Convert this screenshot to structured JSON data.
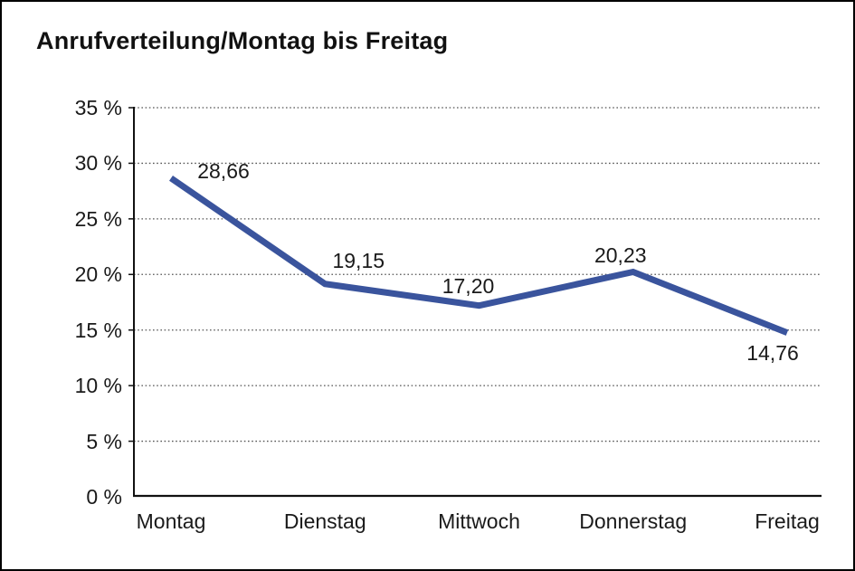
{
  "window": {
    "background_color": "#ffffff",
    "border_color": "#000000"
  },
  "chart_data": {
    "type": "line",
    "title": "Anrufverteilung/Montag bis Freitag",
    "categories": [
      "Montag",
      "Dienstag",
      "Mittwoch",
      "Donnerstag",
      "Freitag"
    ],
    "values": [
      28.66,
      19.15,
      17.2,
      20.23,
      14.76
    ],
    "value_labels": [
      "28,66",
      "19,15",
      "17,20",
      "20,23",
      "14,76"
    ],
    "xlabel": "",
    "ylabel": "",
    "ylim": [
      0,
      35
    ],
    "ytick_step": 5,
    "ytick_labels": [
      "0 %",
      "5 %",
      "10 %",
      "15 %",
      "20 %",
      "25 %",
      "30 %",
      "35 %"
    ],
    "grid": "horizontal-dotted",
    "legend": "none",
    "line_color": "#3A549D",
    "axis_color": "#111111",
    "grid_color": "#555555",
    "text_color": "#1a1a1a"
  }
}
